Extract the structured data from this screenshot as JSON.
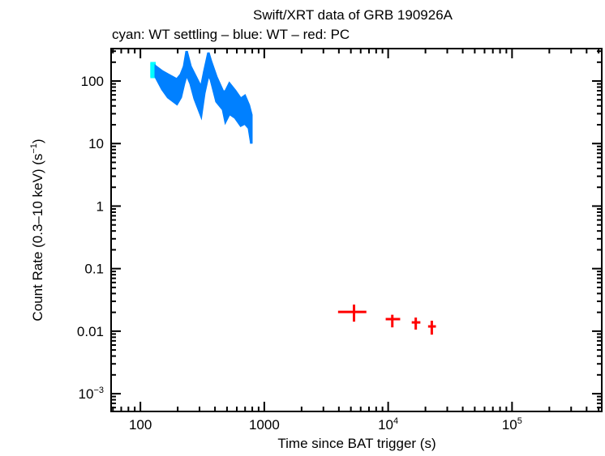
{
  "chart_data": {
    "type": "scatter",
    "title": "Swift/XRT data of GRB 190926A",
    "subtitle": "cyan: WT settling – blue: WT – red: PC",
    "xlabel": "Time since BAT trigger (s)",
    "ylabel": "Count Rate (0.3–10 keV) (s",
    "ylabel_sup": "−1",
    "ylabel_end": ")",
    "xscale": "log",
    "yscale": "log",
    "xlim": [
      58,
      530000
    ],
    "ylim": [
      0.00052,
      330
    ],
    "grid": false,
    "x_ticks": [
      {
        "v": 100,
        "base": "100",
        "exp": ""
      },
      {
        "v": 1000,
        "base": "1000",
        "exp": ""
      },
      {
        "v": 10000,
        "base": "10",
        "exp": "4"
      },
      {
        "v": 100000,
        "base": "10",
        "exp": "5"
      }
    ],
    "y_ticks": [
      {
        "v": 100,
        "base": "100",
        "exp": ""
      },
      {
        "v": 10,
        "base": "10",
        "exp": ""
      },
      {
        "v": 1,
        "base": "1",
        "exp": ""
      },
      {
        "v": 0.1,
        "base": "0.1",
        "exp": ""
      },
      {
        "v": 0.01,
        "base": "0.01",
        "exp": ""
      },
      {
        "v": 0.001,
        "base": "10",
        "exp": "−3"
      }
    ],
    "series": [
      {
        "name": "WT settling",
        "color": "#00ffff",
        "kind": "band",
        "points": [
          [
            123,
            193,
            116
          ],
          [
            130,
            193,
            116
          ]
        ]
      },
      {
        "name": "WT",
        "color": "#0080ff",
        "kind": "band",
        "points": [
          [
            133,
            171,
            116
          ],
          [
            150,
            143,
            74
          ],
          [
            167,
            127,
            55
          ],
          [
            197,
            106,
            43
          ],
          [
            212,
            127,
            55
          ],
          [
            225,
            171,
            91
          ],
          [
            236,
            301,
            127
          ],
          [
            254,
            171,
            91
          ],
          [
            274,
            127,
            52
          ],
          [
            309,
            79,
            28
          ],
          [
            328,
            143,
            64
          ],
          [
            354,
            284,
            127
          ],
          [
            370,
            211,
            106
          ],
          [
            411,
            116,
            47
          ],
          [
            464,
            68,
            35
          ],
          [
            486,
            68,
            22.5
          ],
          [
            523,
            91,
            30
          ],
          [
            582,
            70,
            26
          ],
          [
            646,
            52,
            19.4
          ],
          [
            697,
            58,
            21
          ],
          [
            751,
            41,
            17.7
          ],
          [
            786,
            29,
            10
          ]
        ]
      },
      {
        "name": "PC",
        "color": "#ff0000",
        "kind": "errorbars",
        "points": [
          {
            "x": 5300,
            "xlo": 3940,
            "xhi": 6670,
            "y": 0.0203,
            "ylo": 0.0142,
            "yhi": 0.0266
          },
          {
            "x": 10800,
            "xlo": 9550,
            "xhi": 12500,
            "y": 0.0156,
            "ylo": 0.0115,
            "yhi": 0.0183
          },
          {
            "x": 16700,
            "xlo": 15500,
            "xhi": 18200,
            "y": 0.0138,
            "ylo": 0.0106,
            "yhi": 0.0165
          },
          {
            "x": 22500,
            "xlo": 21000,
            "xhi": 24300,
            "y": 0.0119,
            "ylo": 0.0088,
            "yhi": 0.0147
          }
        ]
      }
    ]
  }
}
